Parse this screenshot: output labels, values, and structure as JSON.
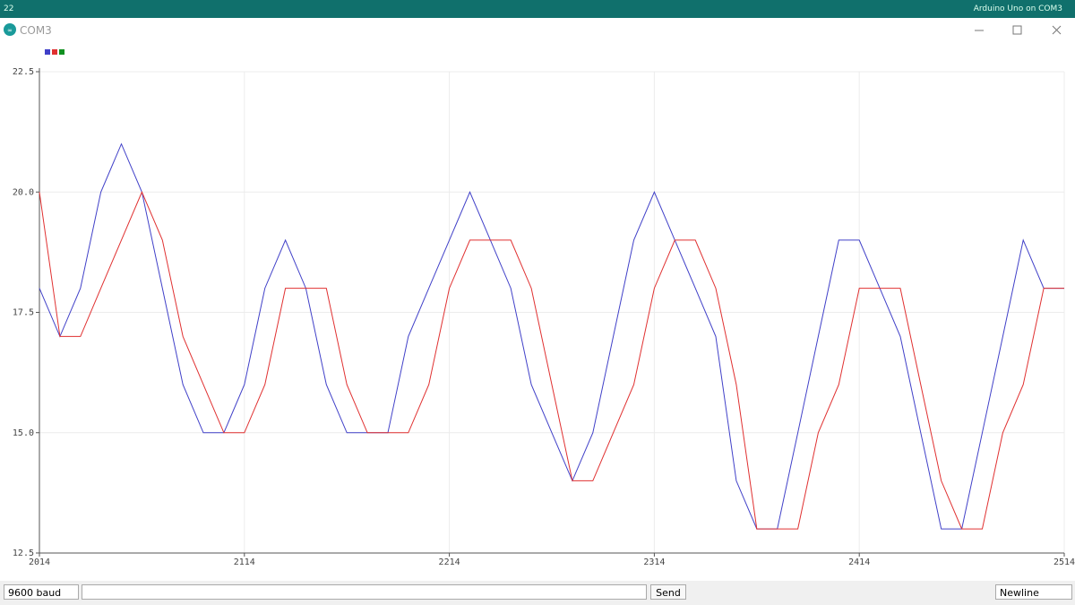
{
  "window": {
    "taskbar_left": "22",
    "taskbar_right": "Arduino Uno on COM3",
    "title": "COM3",
    "baud": "9600 baud",
    "send": "Send",
    "line_ending": "Newline"
  },
  "chart_data": {
    "type": "line",
    "x": [
      2014,
      2024,
      2034,
      2044,
      2054,
      2064,
      2074,
      2084,
      2094,
      2104,
      2114,
      2124,
      2134,
      2144,
      2154,
      2164,
      2174,
      2184,
      2194,
      2204,
      2214,
      2224,
      2234,
      2244,
      2254,
      2264,
      2274,
      2284,
      2294,
      2304,
      2314,
      2324,
      2334,
      2344,
      2354,
      2364,
      2374,
      2384,
      2394,
      2404,
      2414,
      2424,
      2434,
      2444,
      2454,
      2464,
      2474,
      2484,
      2494,
      2504,
      2514
    ],
    "series": [
      {
        "color": "#4040c8",
        "values": [
          18,
          17,
          18,
          20,
          21,
          20,
          18,
          16,
          15,
          15,
          16,
          18,
          19,
          18,
          16,
          15,
          15,
          15,
          17,
          18,
          19,
          20,
          19,
          18,
          16,
          15,
          14,
          15,
          17,
          19,
          20,
          19,
          18,
          17,
          14,
          13,
          13,
          15,
          17,
          19,
          19,
          18,
          17,
          15,
          13,
          13,
          15,
          17,
          19,
          18,
          18
        ]
      },
      {
        "color": "#e03030",
        "values": [
          20,
          17,
          17,
          18,
          19,
          20,
          19,
          17,
          16,
          15,
          15,
          16,
          18,
          18,
          18,
          16,
          15,
          15,
          15,
          16,
          18,
          19,
          19,
          19,
          18,
          16,
          14,
          14,
          15,
          16,
          18,
          19,
          19,
          18,
          16,
          13,
          13,
          13,
          15,
          16,
          18,
          18,
          18,
          16,
          14,
          13,
          13,
          15,
          16,
          18,
          18
        ]
      },
      {
        "color": "#109020",
        "values": [
          null,
          null,
          null,
          null,
          null,
          null,
          null,
          null,
          null,
          null,
          null,
          null,
          null,
          null,
          null,
          null,
          null,
          null,
          null,
          null,
          null,
          null,
          null,
          null,
          null,
          null,
          null,
          null,
          null,
          null,
          null,
          null,
          null,
          null,
          null,
          null,
          null,
          null,
          null,
          null,
          null,
          null,
          null,
          null,
          null,
          null,
          null,
          null,
          null,
          null,
          null
        ]
      }
    ],
    "xlim": [
      2014,
      2514
    ],
    "xticks": [
      2014,
      2114,
      2214,
      2314,
      2414,
      2514
    ],
    "ylim": [
      12.5,
      22.5
    ],
    "yticks": [
      12.5,
      {
        "value": 15,
        "label": "15.0"
      },
      17.5,
      {
        "value": 20,
        "label": "20.0"
      },
      22.5
    ],
    "grid": true
  }
}
